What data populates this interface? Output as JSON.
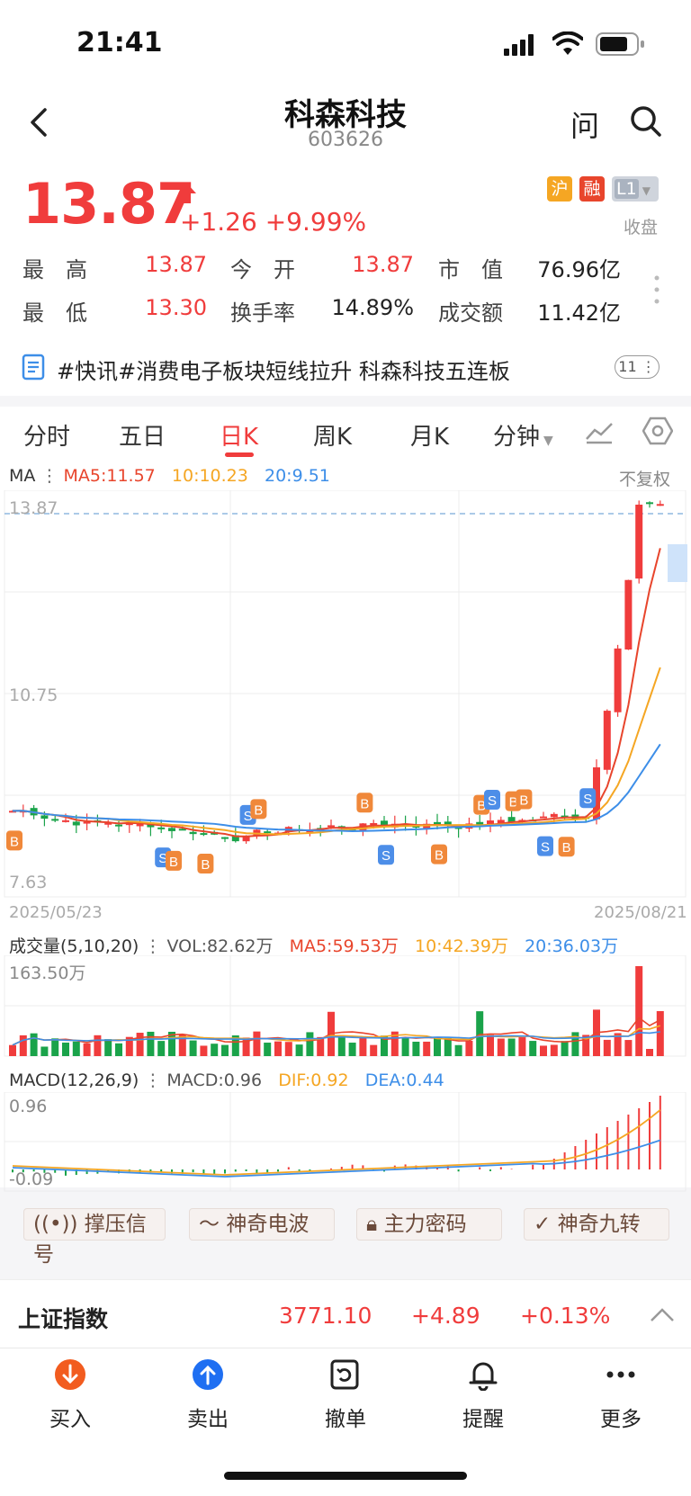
{
  "status": {
    "time": "21:41"
  },
  "header": {
    "title": "科森科技",
    "code": "603626",
    "ask_label": "问"
  },
  "quote": {
    "price": "13.87",
    "change": "+1.26",
    "change_pct": "+9.99%",
    "tags": [
      "沪",
      "融",
      "L1"
    ],
    "market_status": "收盘",
    "stats": [
      {
        "label": "最　高",
        "value": "13.87",
        "color": "#f03c3c"
      },
      {
        "label": "今　开",
        "value": "13.87",
        "color": "#f03c3c"
      },
      {
        "label": "市　值",
        "value": "76.96亿",
        "color": "#222222"
      },
      {
        "label": "最　低",
        "value": "13.30",
        "color": "#f03c3c"
      },
      {
        "label": "换手率",
        "value": "14.89%",
        "color": "#222222"
      },
      {
        "label": "成交额",
        "value": "11.42亿",
        "color": "#222222"
      }
    ]
  },
  "news": {
    "headline": "#快讯#消费电子板块短线拉升 科森科技五连板",
    "count": "11"
  },
  "tabs": [
    "分时",
    "五日",
    "日K",
    "周K",
    "月K",
    "分钟"
  ],
  "active_tab": "日K",
  "kline": {
    "ma_label": "MA",
    "ma5": "MA5:11.57",
    "ma10": "10:10.23",
    "ma20": "20:9.51",
    "adjust": "不复权",
    "y_labels": {
      "high": "13.87",
      "mid": "10.75",
      "low": "7.63"
    },
    "date_start": "2025/05/23",
    "date_end": "2025/08/21"
  },
  "volume": {
    "title": "成交量(5,10,20)",
    "vol": "VOL:82.62万",
    "ma5": "MA5:59.53万",
    "ma10": "10:42.39万",
    "ma20": "20:36.03万",
    "max": "163.50万"
  },
  "macd": {
    "title": "MACD(12,26,9)",
    "macd": "MACD:0.96",
    "dif": "DIF:0.92",
    "dea": "DEA:0.44",
    "max": "0.96",
    "min": "-0.09"
  },
  "signals": [
    "撑压信号",
    "神奇电波",
    "主力密码",
    "神奇九转"
  ],
  "index": {
    "name": "上证指数",
    "value": "3771.10",
    "change": "+4.89",
    "pct": "+0.13%"
  },
  "bottom": [
    {
      "label": "买入",
      "icon": "buy-icon"
    },
    {
      "label": "卖出",
      "icon": "sell-icon"
    },
    {
      "label": "撤单",
      "icon": "cancel-order-icon"
    },
    {
      "label": "提醒",
      "icon": "bell-icon"
    },
    {
      "label": "更多",
      "icon": "more-icon"
    }
  ],
  "colors": {
    "up": "#f03c3c",
    "down": "#1aa34a",
    "ma5": "#e8452c",
    "ma10": "#f5a623",
    "ma20": "#3d8ee8",
    "buy_marker": "#f0883a",
    "sell_marker": "#4d8ee8"
  }
}
